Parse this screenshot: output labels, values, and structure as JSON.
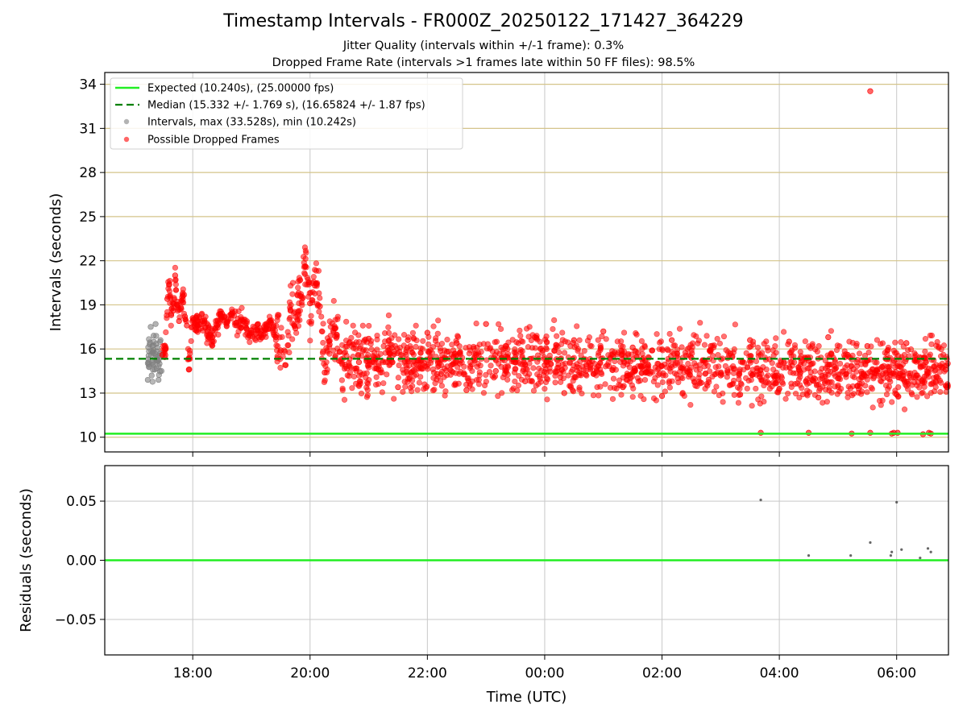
{
  "figure": {
    "title": "Timestamp Intervals - FR000Z_20250122_171427_364229",
    "subtitle_1": "Jitter Quality (intervals within +/-1 frame): 0.3%",
    "subtitle_2": "Dropped Frame Rate (intervals >1 frames late within 50 FF files): 98.5%"
  },
  "colors": {
    "expected": "#22ee22",
    "median": "#008000",
    "intervals": "#808080",
    "dropped": "#ff0000",
    "residuals": "#404040",
    "hgrid_top": "#d4c48a",
    "grid": "#c8c8c8"
  },
  "chart_data": [
    {
      "type": "scatter",
      "ylabel": "Intervals (seconds)",
      "ylim": [
        9,
        34.8
      ],
      "yticks": [
        10,
        13,
        16,
        19,
        22,
        25,
        28,
        31,
        34
      ],
      "grid": true,
      "legend": {
        "placement": "top-left",
        "entries": [
          "Expected (10.240s), (25.00000 fps)",
          "Median (15.332 +/- 1.769 s), (16.65824 +/- 1.87 fps)",
          "Intervals, max (33.528s), min (10.242s)",
          "Possible Dropped Frames"
        ]
      },
      "expected": 10.24,
      "median": 15.332,
      "median_std": 1.769,
      "max_interval": 33.528,
      "min_interval": 10.242,
      "series": [
        {
          "kind": "intervals",
          "points": [
            [
              "17:14",
              13.9
            ],
            [
              "17:15",
              15.1
            ],
            [
              "17:16",
              16.3
            ],
            [
              "17:17",
              17.5
            ],
            [
              "17:18",
              14.2
            ],
            [
              "17:19",
              15.8
            ],
            [
              "17:20",
              16.9
            ],
            [
              "17:21",
              14.6
            ],
            [
              "17:22",
              17.7
            ],
            [
              "17:23",
              15.3
            ],
            [
              "17:24",
              16.1
            ],
            [
              "17:25",
              13.9
            ],
            [
              "17:26",
              15.0
            ],
            [
              "17:27",
              16.6
            ],
            [
              "17:28",
              14.5
            ]
          ]
        },
        {
          "kind": "dropped",
          "points": [
            [
              "17:29",
              15.6
            ],
            [
              "17:30",
              16.2
            ],
            [
              "17:32",
              16.0
            ],
            [
              "17:34",
              19.4
            ],
            [
              "17:36",
              20.4
            ],
            [
              "17:38",
              18.3
            ],
            [
              "17:40",
              18.6
            ],
            [
              "17:42",
              21.0
            ],
            [
              "17:44",
              19.0
            ],
            [
              "17:46",
              17.9
            ],
            [
              "17:48",
              18.8
            ],
            [
              "17:50",
              19.6
            ],
            [
              "17:52",
              18.2
            ],
            [
              "17:54",
              17.6
            ],
            [
              "17:56",
              14.6
            ],
            [
              "18:00",
              18.1
            ],
            [
              "18:05",
              17.6
            ],
            [
              "18:10",
              17.9
            ],
            [
              "18:15",
              17.2
            ],
            [
              "18:20",
              16.8
            ],
            [
              "18:25",
              17.6
            ],
            [
              "18:30",
              18.4
            ],
            [
              "18:35",
              17.8
            ],
            [
              "18:40",
              18.3
            ],
            [
              "18:45",
              17.6
            ],
            [
              "18:50",
              18.0
            ],
            [
              "18:55",
              17.4
            ],
            [
              "19:00",
              17.1
            ],
            [
              "19:05",
              17.3
            ],
            [
              "19:10",
              17.0
            ],
            [
              "19:15",
              17.4
            ],
            [
              "19:20",
              17.8
            ],
            [
              "19:25",
              16.8
            ],
            [
              "19:30",
              15.9
            ],
            [
              "19:35",
              14.9
            ],
            [
              "19:40",
              18.6
            ],
            [
              "19:45",
              17.4
            ],
            [
              "19:50",
              19.6
            ],
            [
              "19:55",
              21.6
            ],
            [
              "20:00",
              19.1
            ],
            [
              "20:05",
              20.3
            ],
            [
              "20:10",
              18.9
            ],
            [
              "20:15",
              14.4
            ],
            [
              "20:20",
              16.3
            ],
            [
              "20:25",
              17.4
            ],
            [
              "20:30",
              15.8
            ],
            [
              "20:40",
              16.4
            ],
            [
              "20:50",
              15.1
            ],
            [
              "21:00",
              16.7
            ],
            [
              "21:10",
              14.6
            ],
            [
              "21:20",
              15.9
            ],
            [
              "21:30",
              13.4
            ],
            [
              "21:40",
              16.6
            ],
            [
              "21:50",
              15.2
            ],
            [
              "22:00",
              17.1
            ],
            [
              "22:10",
              14.3
            ],
            [
              "22:20",
              15.8
            ],
            [
              "22:30",
              16.4
            ],
            [
              "22:40",
              13.2
            ],
            [
              "22:50",
              15.6
            ],
            [
              "23:00",
              17.7
            ],
            [
              "23:10",
              14.5
            ],
            [
              "23:20",
              16.2
            ],
            [
              "23:30",
              15.1
            ],
            [
              "23:40",
              13.8
            ],
            [
              "23:50",
              16.8
            ],
            [
              "00:00",
              14.9
            ],
            [
              "00:10",
              15.9
            ],
            [
              "00:20",
              13.0
            ],
            [
              "00:30",
              16.6
            ],
            [
              "00:40",
              15.3
            ],
            [
              "00:50",
              14.3
            ],
            [
              "01:00",
              17.2
            ],
            [
              "01:10",
              15.5
            ],
            [
              "01:20",
              13.4
            ],
            [
              "01:30",
              16.1
            ],
            [
              "01:40",
              14.8
            ],
            [
              "01:50",
              15.9
            ],
            [
              "02:00",
              12.8
            ],
            [
              "02:10",
              16.6
            ],
            [
              "02:20",
              14.7
            ],
            [
              "02:30",
              15.4
            ],
            [
              "02:40",
              13.7
            ],
            [
              "02:50",
              16.2
            ],
            [
              "03:00",
              14.2
            ],
            [
              "03:10",
              15.7
            ],
            [
              "03:20",
              12.9
            ],
            [
              "03:30",
              16.6
            ],
            [
              "03:40",
              14.1
            ],
            [
              "03:50",
              15.3
            ],
            [
              "04:00",
              13.3
            ],
            [
              "04:10",
              16.5
            ],
            [
              "04:20",
              14.6
            ],
            [
              "04:30",
              15.2
            ],
            [
              "04:40",
              12.7
            ],
            [
              "04:50",
              16.8
            ],
            [
              "05:00",
              14.0
            ],
            [
              "05:10",
              15.6
            ],
            [
              "05:20",
              13.5
            ],
            [
              "05:30",
              16.2
            ],
            [
              "05:40",
              14.5
            ],
            [
              "05:50",
              15.3
            ],
            [
              "06:00",
              12.9
            ],
            [
              "06:10",
              16.4
            ],
            [
              "06:20",
              14.2
            ],
            [
              "06:30",
              15.1
            ],
            [
              "06:40",
              13.8
            ],
            [
              "06:50",
              14.6
            ],
            [
              "03:41",
              10.3
            ],
            [
              "04:30",
              10.3
            ],
            [
              "05:14",
              10.25
            ],
            [
              "05:33",
              10.3
            ],
            [
              "05:55",
              10.25
            ],
            [
              "05:57",
              10.3
            ],
            [
              "06:01",
              10.3
            ],
            [
              "06:27",
              10.2
            ],
            [
              "06:33",
              10.3
            ],
            [
              "06:35",
              10.25
            ],
            [
              "05:33",
              33.528
            ]
          ]
        }
      ]
    },
    {
      "type": "scatter",
      "ylabel": "Residuals (seconds)",
      "xlabel": "Time (UTC)",
      "ylim": [
        -0.08,
        0.08
      ],
      "yticks": [
        -0.05,
        0.0,
        0.05
      ],
      "ytick_labels": [
        "−0.05",
        "0.00",
        "0.05"
      ],
      "xtick_labels": [
        "18:00",
        "20:00",
        "22:00",
        "00:00",
        "02:00",
        "04:00",
        "06:00"
      ],
      "grid": true,
      "zero_line": 0.0,
      "points": [
        [
          "03:41",
          0.051
        ],
        [
          "04:30",
          0.004
        ],
        [
          "05:13",
          0.004
        ],
        [
          "05:33",
          0.015
        ],
        [
          "05:54",
          0.004
        ],
        [
          "05:55",
          0.007
        ],
        [
          "06:00",
          0.049
        ],
        [
          "06:05",
          0.009
        ],
        [
          "06:24",
          0.002
        ],
        [
          "06:32",
          0.01
        ],
        [
          "06:35",
          0.007
        ]
      ]
    }
  ]
}
